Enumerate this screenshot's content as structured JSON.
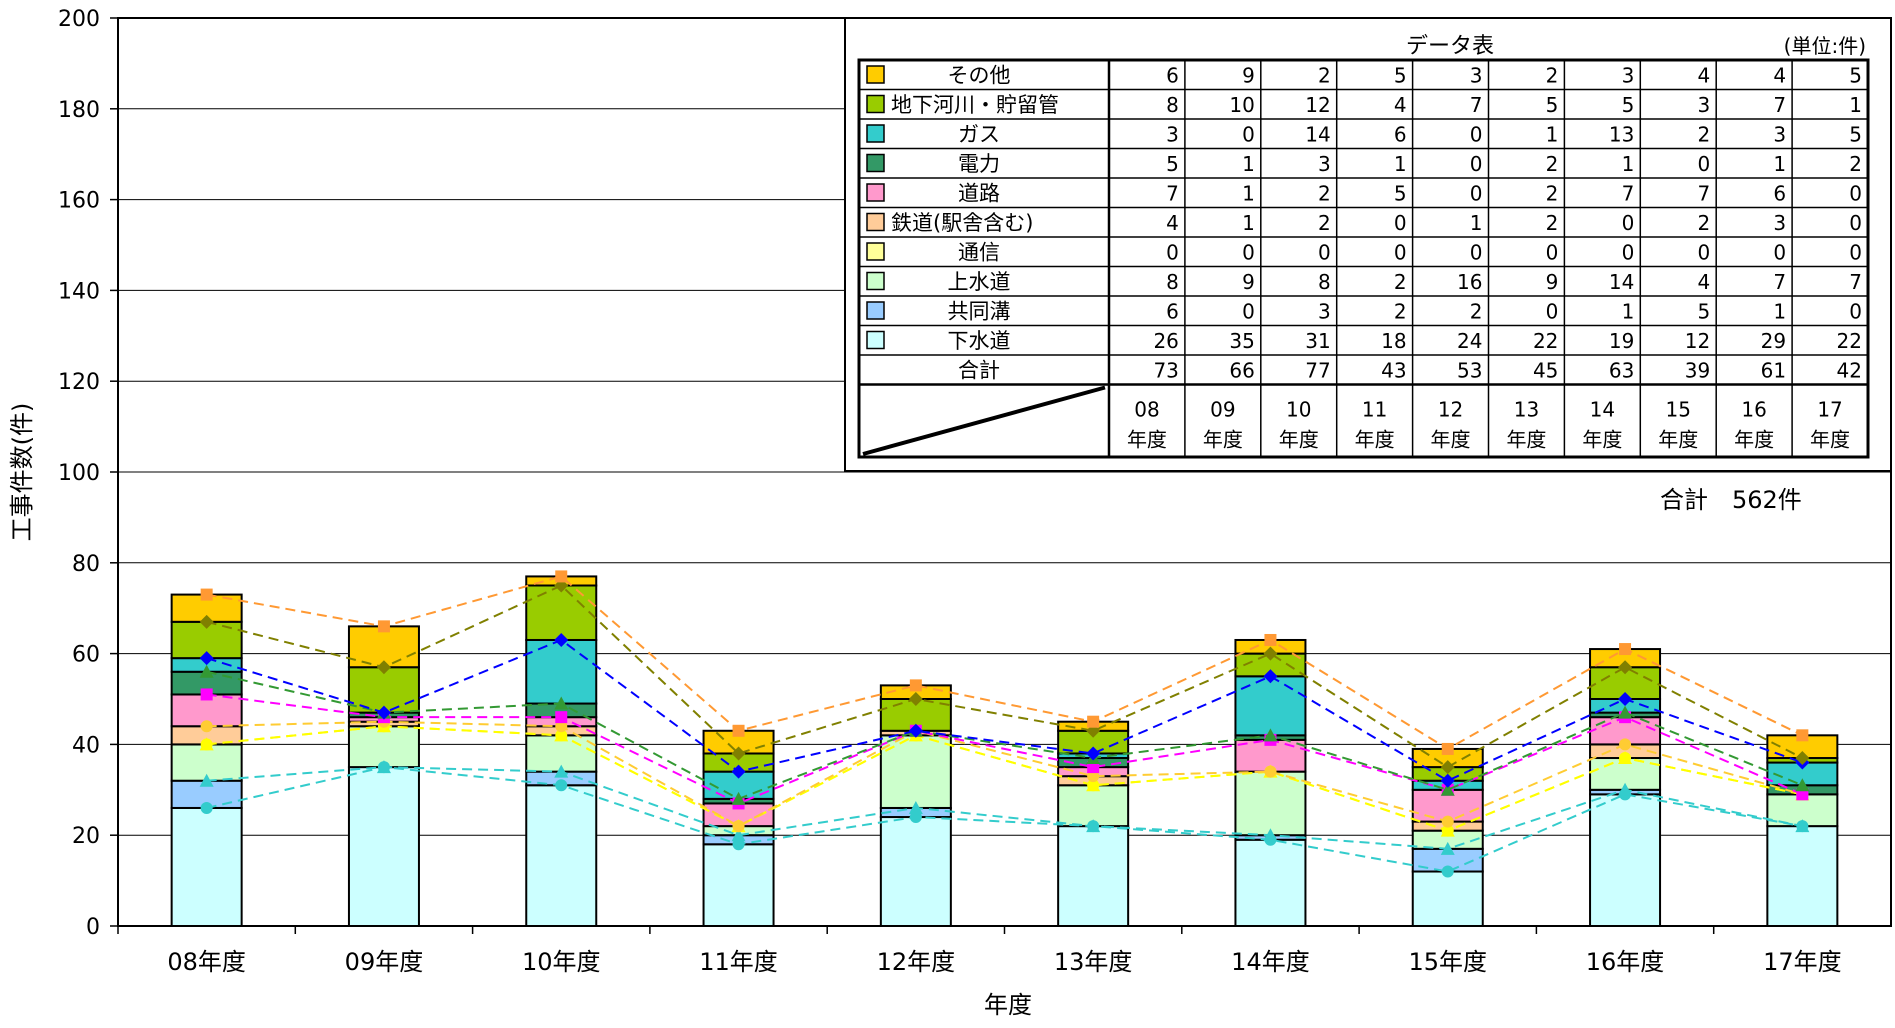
{
  "chart_data": {
    "type": "bar",
    "stacked": true,
    "ylabel": "工事件数(件)",
    "xlabel": "年度",
    "ylim": [
      0,
      200
    ],
    "y_ticks": [
      0,
      20,
      40,
      60,
      80,
      100,
      120,
      140,
      160,
      180,
      200
    ],
    "categories": [
      "08年度",
      "09年度",
      "10年度",
      "11年度",
      "12年度",
      "13年度",
      "14年度",
      "15年度",
      "16年度",
      "17年度"
    ],
    "series": [
      {
        "name": "下水道",
        "color": "#CCFFFF",
        "values": [
          26,
          35,
          31,
          18,
          24,
          22,
          19,
          12,
          29,
          22
        ]
      },
      {
        "name": "共同溝",
        "color": "#99CCFF",
        "values": [
          6,
          0,
          3,
          2,
          2,
          0,
          1,
          5,
          1,
          0
        ]
      },
      {
        "name": "上水道",
        "color": "#CCFFCC",
        "values": [
          8,
          9,
          8,
          2,
          16,
          9,
          14,
          4,
          7,
          7
        ]
      },
      {
        "name": "通信",
        "color": "#FFFF99",
        "values": [
          0,
          0,
          0,
          0,
          0,
          0,
          0,
          0,
          0,
          0
        ]
      },
      {
        "name": "鉄道(駅舎含む)",
        "color": "#FFCC99",
        "values": [
          4,
          1,
          2,
          0,
          1,
          2,
          0,
          2,
          3,
          0
        ]
      },
      {
        "name": "道路",
        "color": "#FF99CC",
        "values": [
          7,
          1,
          2,
          5,
          0,
          2,
          7,
          7,
          6,
          0
        ]
      },
      {
        "name": "電力",
        "color": "#339966",
        "values": [
          5,
          1,
          3,
          1,
          0,
          2,
          1,
          0,
          1,
          2
        ]
      },
      {
        "name": "ガス",
        "color": "#33CCCC",
        "values": [
          3,
          0,
          14,
          6,
          0,
          1,
          13,
          2,
          3,
          5
        ]
      },
      {
        "name": "地下河川・貯留管",
        "color": "#99CC00",
        "values": [
          8,
          10,
          12,
          4,
          7,
          5,
          5,
          3,
          7,
          1
        ]
      },
      {
        "name": "その他",
        "color": "#FFCC00",
        "values": [
          6,
          9,
          2,
          5,
          3,
          2,
          3,
          4,
          4,
          5
        ]
      }
    ],
    "line_colors": [
      "#33CCCC",
      "#33CCCC",
      "#FFFF00",
      "#FFFF00",
      "#FFCC33",
      "#FF00FF",
      "#339933",
      "#0000FF",
      "#808000",
      "#FF9933"
    ],
    "totals": [
      73,
      66,
      77,
      43,
      53,
      45,
      63,
      39,
      61,
      42
    ],
    "grid": true
  },
  "data_table": {
    "title": "データ表",
    "unit": "(単位:件)",
    "rows_top_to_bottom": [
      "その他",
      "地下河川・貯留管",
      "ガス",
      "電力",
      "道路",
      "鉄道(駅舎含む)",
      "通信",
      "上水道",
      "共同溝",
      "下水道"
    ],
    "total_label": "合計",
    "year_headers": [
      [
        "08",
        "年度"
      ],
      [
        "09",
        "年度"
      ],
      [
        "10",
        "年度"
      ],
      [
        "11",
        "年度"
      ],
      [
        "12",
        "年度"
      ],
      [
        "13",
        "年度"
      ],
      [
        "14",
        "年度"
      ],
      [
        "15",
        "年度"
      ],
      [
        "16",
        "年度"
      ],
      [
        "17",
        "年度"
      ]
    ]
  },
  "grand_total": "合計　562件"
}
